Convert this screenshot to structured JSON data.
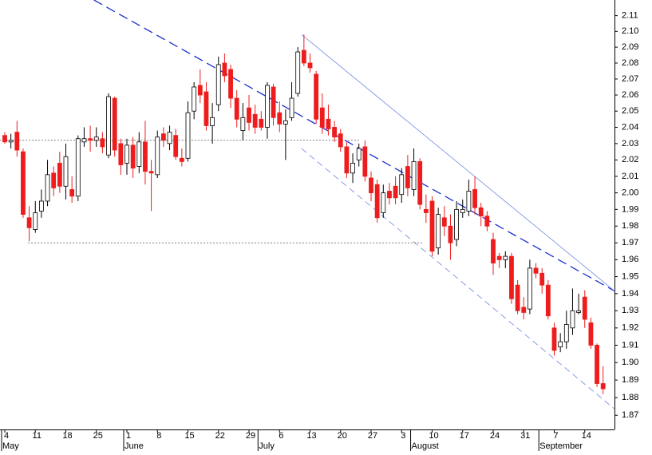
{
  "chart_data": {
    "type": "candlestick",
    "categories": [
      "4",
      null,
      null,
      null,
      null,
      "11",
      null,
      null,
      null,
      null,
      "18",
      null,
      null,
      null,
      null,
      "25",
      null,
      null,
      null,
      null,
      "1",
      null,
      null,
      null,
      null,
      "8",
      null,
      null,
      null,
      null,
      "15",
      null,
      null,
      null,
      null,
      "22",
      null,
      null,
      null,
      null,
      "29",
      null,
      null,
      null,
      null,
      "6",
      null,
      null,
      null,
      null,
      "13",
      null,
      null,
      null,
      null,
      "20",
      null,
      null,
      null,
      null,
      "27",
      null,
      null,
      null,
      null,
      "3",
      null,
      null,
      null,
      null,
      "10",
      null,
      null,
      null,
      null,
      "17",
      null,
      null,
      null,
      null,
      "24",
      null,
      null,
      null,
      null,
      "31",
      null,
      null,
      null,
      null,
      "7",
      null,
      null,
      null,
      null,
      "14",
      null,
      null,
      null
    ],
    "month_labels": [
      "May",
      null,
      null,
      null,
      null,
      null,
      null,
      null,
      null,
      null,
      null,
      null,
      null,
      null,
      null,
      null,
      null,
      null,
      null,
      null,
      "June",
      null,
      null,
      null,
      null,
      null,
      null,
      null,
      null,
      null,
      null,
      null,
      null,
      null,
      null,
      null,
      null,
      null,
      null,
      null,
      null,
      null,
      "July",
      null,
      null,
      null,
      null,
      null,
      null,
      null,
      null,
      null,
      null,
      null,
      null,
      null,
      null,
      null,
      null,
      null,
      null,
      null,
      null,
      null,
      null,
      null,
      null,
      "August",
      null,
      null,
      null,
      null,
      null,
      null,
      null,
      null,
      null,
      null,
      null,
      null,
      null,
      null,
      null,
      null,
      null,
      null,
      null,
      null,
      "September",
      null,
      null,
      null,
      null,
      null,
      null,
      null,
      null,
      null,
      null,
      null,
      null
    ],
    "open": [
      2.035,
      2.031,
      2.037,
      2.025,
      1.985,
      1.978,
      1.989,
      1.995,
      2.012,
      2.018,
      2.004,
      2.002,
      1.998,
      2.031,
      2.033,
      2.032,
      2.033,
      2.023,
      2.058,
      2.03,
      2.018,
      2.029,
      2.016,
      2.031,
      2.013,
      2.011,
      2.036,
      2.03,
      2.035,
      2.021,
      2.021,
      2.05,
      2.066,
      2.062,
      2.041,
      2.054,
      2.08,
      2.076,
      2.058,
      2.038,
      2.052,
      2.048,
      2.045,
      2.04,
      2.065,
      2.049,
      2.042,
      2.046,
      2.061,
      2.088,
      2.08,
      2.073,
      2.052,
      2.045,
      2.04,
      2.036,
      2.028,
      2.012,
      2.02,
      2.028,
      2.009,
      2.005,
      1.988,
      2.001,
      2.004,
      1.999,
      2.016,
      2.002,
      2.019,
      1.99,
      1.995,
      1.967,
      1.985,
      1.98,
      1.972,
      1.988,
      1.989,
      2.002,
      1.991,
      1.986,
      1.972,
      1.962,
      1.96,
      1.962,
      1.945,
      1.932,
      1.931,
      1.955,
      1.952,
      1.945,
      1.92,
      1.909,
      1.912,
      1.92,
      1.929,
      1.938,
      1.923,
      1.91,
      1.888
    ],
    "high": [
      2.037,
      2.036,
      2.044,
      2.027,
      1.992,
      1.995,
      2.002,
      2.02,
      2.016,
      2.025,
      2.03,
      2.01,
      2.035,
      2.04,
      2.041,
      2.04,
      2.037,
      2.061,
      2.059,
      2.033,
      2.033,
      2.034,
      2.037,
      2.044,
      2.02,
      2.038,
      2.04,
      2.041,
      2.039,
      2.027,
      2.056,
      2.068,
      2.076,
      2.068,
      2.055,
      2.084,
      2.086,
      2.079,
      2.063,
      2.055,
      2.06,
      2.054,
      2.05,
      2.068,
      2.067,
      2.056,
      2.051,
      2.068,
      2.09,
      2.098,
      2.086,
      2.075,
      2.061,
      2.054,
      2.044,
      2.039,
      2.031,
      2.024,
      2.03,
      2.032,
      2.013,
      2.008,
      2.005,
      2.006,
      2.01,
      2.015,
      2.023,
      2.027,
      2.021,
      1.999,
      1.998,
      1.991,
      1.992,
      1.987,
      1.995,
      1.996,
      2.008,
      2.01,
      1.994,
      1.989,
      1.976,
      1.964,
      1.965,
      1.964,
      1.948,
      1.938,
      1.96,
      1.958,
      1.955,
      1.948,
      1.923,
      1.917,
      1.93,
      1.943,
      1.94,
      1.942,
      1.926,
      1.911,
      1.898
    ],
    "low": [
      2.03,
      2.027,
      2.022,
      1.985,
      1.971,
      1.976,
      1.985,
      1.992,
      1.998,
      2.0,
      1.996,
      1.994,
      1.995,
      2.028,
      2.025,
      2.028,
      2.024,
      2.021,
      2.022,
      2.011,
      2.011,
      2.009,
      2.012,
      2.005,
      1.989,
      2.009,
      2.028,
      2.026,
      2.02,
      2.016,
      2.019,
      2.045,
      2.055,
      2.038,
      2.03,
      2.05,
      2.068,
      2.052,
      2.04,
      2.032,
      2.038,
      2.036,
      2.038,
      2.033,
      2.041,
      2.037,
      2.02,
      2.044,
      2.059,
      2.078,
      2.074,
      2.042,
      2.036,
      2.035,
      2.031,
      2.025,
      2.009,
      2.006,
      2.016,
      2.007,
      1.995,
      1.982,
      1.985,
      1.993,
      1.993,
      1.994,
      1.998,
      1.998,
      1.99,
      1.982,
      1.962,
      1.963,
      1.974,
      1.96,
      1.968,
      1.985,
      1.986,
      1.987,
      1.98,
      1.977,
      1.951,
      1.955,
      1.955,
      1.934,
      1.928,
      1.925,
      1.928,
      1.949,
      1.94,
      1.925,
      1.904,
      1.906,
      1.908,
      1.916,
      1.928,
      1.92,
      1.908,
      1.886,
      1.882
    ],
    "close": [
      2.031,
      2.032,
      2.026,
      1.987,
      1.979,
      1.988,
      1.995,
      2.011,
      2.003,
      2.004,
      2.022,
      1.998,
      2.033,
      2.033,
      2.032,
      2.034,
      2.028,
      2.059,
      2.026,
      2.017,
      2.029,
      2.015,
      2.031,
      2.013,
      2.012,
      2.034,
      2.032,
      2.037,
      2.022,
      2.019,
      2.049,
      2.065,
      2.06,
      2.041,
      2.046,
      2.079,
      2.072,
      2.058,
      2.045,
      2.046,
      2.043,
      2.04,
      2.04,
      2.066,
      2.046,
      2.042,
      2.044,
      2.058,
      2.087,
      2.08,
      2.077,
      2.045,
      2.04,
      2.039,
      2.034,
      2.028,
      2.012,
      2.018,
      2.027,
      2.01,
      2.0,
      1.985,
      2.0,
      1.997,
      1.997,
      2.011,
      2.003,
      2.019,
      1.993,
      1.988,
      1.965,
      1.987,
      1.98,
      1.97,
      1.99,
      1.99,
      2.001,
      1.991,
      1.986,
      1.98,
      1.958,
      1.96,
      1.962,
      1.937,
      1.93,
      1.929,
      1.955,
      1.952,
      1.945,
      1.927,
      1.907,
      1.912,
      1.922,
      1.93,
      1.93,
      1.925,
      1.91,
      1.888,
      1.885
    ],
    "up_color": "#ffffff",
    "down_color": "#ee1c1c",
    "log_scale": true,
    "ylim": [
      1.862,
      2.12
    ],
    "yticks": [
      1.87,
      1.88,
      1.89,
      {
        "value": 1.9,
        "label": "1.90"
      },
      1.91,
      1.92,
      1.93,
      1.94,
      1.95,
      1.96,
      1.97,
      1.98,
      1.99,
      {
        "value": 2.0,
        "label": "2.00"
      },
      2.01,
      2.02,
      2.03,
      2.04,
      2.05,
      2.06,
      2.07,
      2.08,
      2.09,
      {
        "value": 2.1,
        "label": "2.10"
      },
      2.11
    ],
    "lines": [
      {
        "x": [
          14.6,
          99.9
        ],
        "y": [
          2.12,
          1.9415
        ],
        "color": "#1a2fd1",
        "dash": "12 6",
        "width": 1.3
      },
      {
        "x": [
          48.6,
          99.9
        ],
        "y": [
          2.098,
          1.9415
        ],
        "color": "#6f86e0",
        "dash": "none",
        "width": 0.8
      },
      {
        "x": [
          48.6,
          99.9
        ],
        "y": [
          2.027,
          1.8735
        ],
        "color": "#6f86e0",
        "dash": "8 5",
        "width": 0.8
      },
      {
        "x": [
          -0.8,
          58
        ],
        "y": [
          2.032,
          2.032
        ],
        "color": "#555555",
        "dash": "2 2",
        "width": 0.8
      },
      {
        "x": [
          3.8,
          68.5
        ],
        "y": [
          1.97,
          1.97
        ],
        "color": "#555555",
        "dash": "2 2",
        "width": 0.8
      }
    ]
  }
}
